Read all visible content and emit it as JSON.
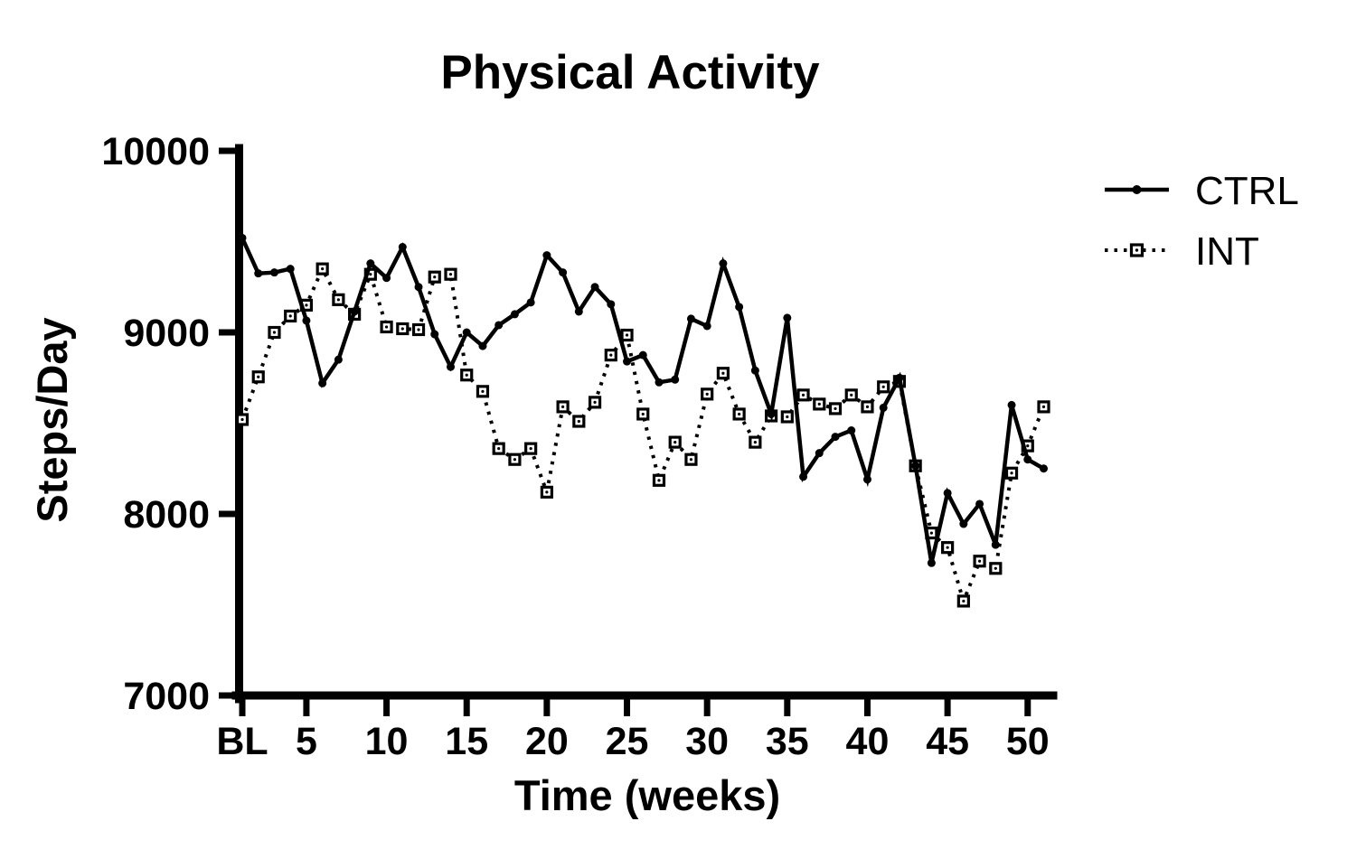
{
  "page": {
    "background": "#ffffff",
    "foreground": "#000000"
  },
  "chart_data": {
    "type": "line",
    "title": "Physical Activity",
    "xlabel": "Time (weeks)",
    "ylabel": "Steps/Day",
    "ylim": [
      7000,
      10000
    ],
    "yticks": [
      10000,
      9000,
      8000,
      7000
    ],
    "xtick_labels": [
      "BL",
      "5",
      "10",
      "15",
      "20",
      "25",
      "30",
      "35",
      "40",
      "45",
      "50"
    ],
    "xtick_indices": [
      0,
      4,
      9,
      14,
      19,
      24,
      29,
      34,
      39,
      44,
      49
    ],
    "x_categories": [
      "BL",
      "2",
      "3",
      "4",
      "5",
      "6",
      "7",
      "8",
      "9",
      "10",
      "11",
      "12",
      "13",
      "14",
      "15",
      "16",
      "17",
      "18",
      "19",
      "20",
      "21",
      "22",
      "23",
      "24",
      "25",
      "26",
      "27",
      "28",
      "29",
      "30",
      "31",
      "32",
      "33",
      "34",
      "35",
      "36",
      "37",
      "38",
      "39",
      "40",
      "41",
      "42",
      "43",
      "44",
      "45",
      "46",
      "47",
      "48",
      "49",
      "50",
      "51"
    ],
    "grid": false,
    "legend_position": "right-top",
    "color": "#000000",
    "series": [
      {
        "name": "CTRL",
        "style": "solid",
        "marker": "filled-circle",
        "values": [
          9520,
          9325,
          9330,
          9350,
          9065,
          8720,
          8850,
          9115,
          9380,
          9300,
          9470,
          9250,
          8990,
          8810,
          9000,
          8925,
          9040,
          9100,
          9165,
          9425,
          9330,
          9115,
          9250,
          9155,
          8840,
          8875,
          8725,
          8740,
          9075,
          9035,
          9380,
          9140,
          8790,
          8550,
          9080,
          8205,
          8335,
          8425,
          8460,
          8190,
          8585,
          8750,
          8265,
          7730,
          8115,
          7945,
          8055,
          7830,
          8600,
          8300,
          8250
        ]
      },
      {
        "name": "INT",
        "style": "dashed",
        "marker": "open-square",
        "values": [
          8520,
          8755,
          9000,
          9090,
          9150,
          9350,
          9180,
          9100,
          9320,
          9030,
          9020,
          9015,
          9305,
          9320,
          8765,
          8675,
          8360,
          8300,
          8360,
          8120,
          8590,
          8510,
          8615,
          8875,
          8985,
          8550,
          8185,
          8395,
          8300,
          8660,
          8775,
          8550,
          8395,
          8540,
          8535,
          8655,
          8605,
          8580,
          8655,
          8590,
          8700,
          8730,
          8265,
          7895,
          7815,
          7520,
          7740,
          7700,
          8225,
          8375,
          8590
        ]
      }
    ]
  }
}
